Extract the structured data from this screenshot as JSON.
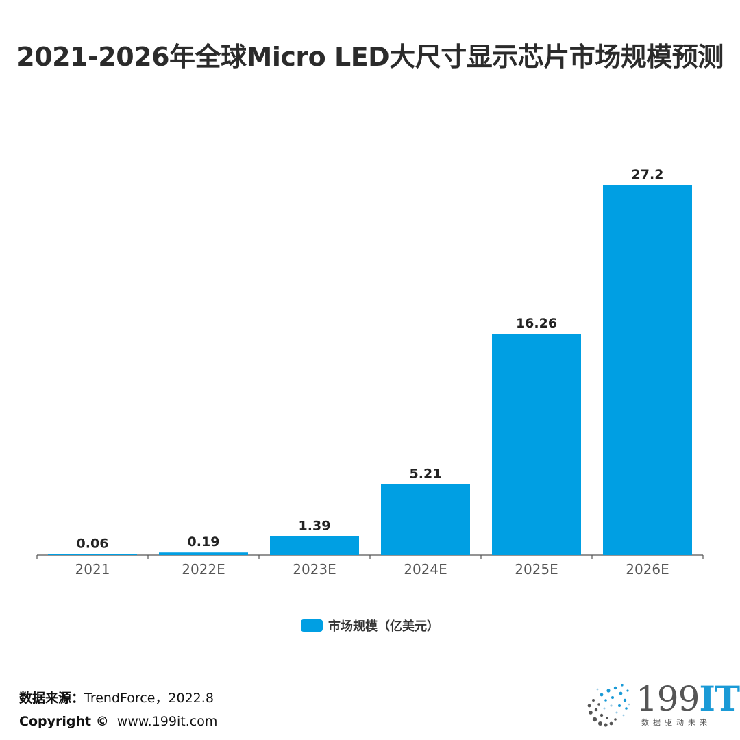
{
  "title": "2021-2026年全球Micro LED大尺寸显示芯片市场规模预测",
  "colors": {
    "bar": "#009fe3",
    "axis": "#555555",
    "title": "#2b2b2b"
  },
  "chart_data": {
    "type": "bar",
    "title": "2021-2026年全球Micro LED大尺寸显示芯片市场规模预测",
    "categories": [
      "2021",
      "2022E",
      "2023E",
      "2024E",
      "2025E",
      "2026E"
    ],
    "series": [
      {
        "name": "市场规模（亿美元）",
        "values": [
          0.06,
          0.19,
          1.39,
          5.21,
          16.26,
          27.2
        ],
        "labels": [
          "0.06",
          "0.19",
          "1.39",
          "5.21",
          "16.26",
          "27.2"
        ]
      }
    ],
    "xlabel": "",
    "ylabel": "",
    "ylim": [
      0,
      30
    ],
    "grid": false,
    "legend_position": "bottom-center"
  },
  "legend": {
    "label": "市场规模（亿美元）"
  },
  "footer": {
    "source_label": "数据来源：",
    "source_value": "TrendForce，2022.8",
    "copyright_label": "Copyright ©",
    "copyright_value": "www.199it.com"
  },
  "logo": {
    "main": "199",
    "accent": "IT",
    "tagline": "数据驱动未来",
    "icon": "dot-sphere-logo-icon"
  }
}
